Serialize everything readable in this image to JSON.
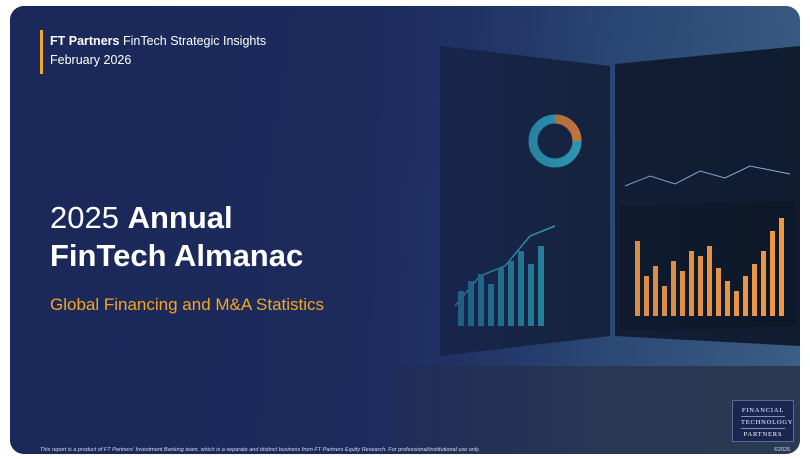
{
  "header": {
    "brand": "FT Partners",
    "series": "FinTech Strategic Insights",
    "date": "February 2026"
  },
  "title": {
    "year": "2025",
    "word": "Annual",
    "line2": "FinTech Almanac",
    "subtitle": "Global Financing and M&A Statistics"
  },
  "footer": {
    "disclaimer": "This report is a product of FT Partners' Investment Banking team, which is a separate and distinct business from FT Partners Equity Research. For professional/institutional use only.",
    "copyright": "©2026"
  },
  "logo": {
    "lines": [
      "FINANCIAL",
      "TECHNOLOGY",
      "PARTNERS"
    ]
  }
}
